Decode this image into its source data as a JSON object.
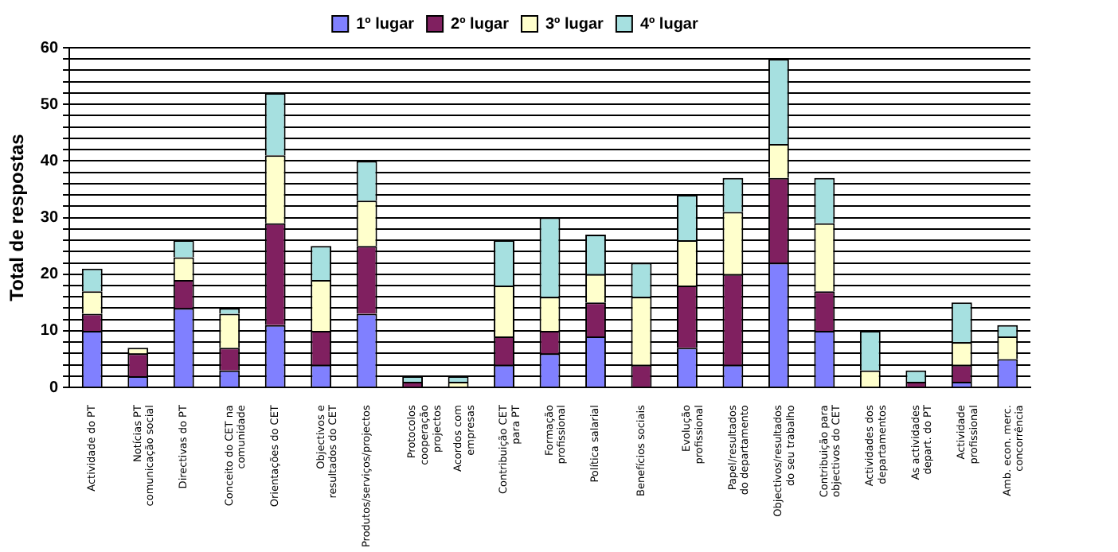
{
  "chart_data": {
    "type": "bar",
    "stacked": true,
    "ylabel": "Total de respostas",
    "categories": [
      "Actividade do PT",
      "Notícias PT comunicação social",
      "Directivas do PT",
      "Conceito do CET na comunidade",
      "Orientações do CET",
      "Objectivos e resultados do CET",
      "Produtos/serviços/projectos",
      "Protocolos cooperação projectos",
      "Acordos com empresas",
      "Contribuição CET para PT",
      "Formação profissional",
      "Política salarial",
      "Benefícios sociais",
      "Evolução profissional",
      "Papel/resultados do departamento",
      "Objectivos/resultados do seu trabalho",
      "Contribuição para objectivos do CET",
      "Actividades dos departamentos",
      "As actividades depart. do PT",
      "Actividade profissional",
      "Amb. econ. merc. concorrência"
    ],
    "series": [
      {
        "name": "1º lugar",
        "color": "#8080ff",
        "values": [
          10,
          2,
          14,
          3,
          11,
          4,
          13,
          0,
          0,
          4,
          6,
          9,
          0,
          7,
          4,
          22,
          10,
          0,
          0,
          1,
          5
        ]
      },
      {
        "name": "2º lugar",
        "color": "#802060",
        "values": [
          3,
          4,
          5,
          4,
          18,
          6,
          12,
          1,
          0,
          5,
          4,
          6,
          4,
          11,
          16,
          15,
          7,
          0,
          1,
          3,
          0
        ]
      },
      {
        "name": "3º lugar",
        "color": "#ffffcc",
        "values": [
          4,
          1,
          4,
          6,
          12,
          9,
          8,
          0,
          1,
          9,
          6,
          5,
          12,
          8,
          11,
          6,
          12,
          3,
          0,
          4,
          4
        ]
      },
      {
        "name": "4º lugar",
        "color": "#a6e0e0",
        "values": [
          4,
          0,
          3,
          1,
          11,
          6,
          7,
          1,
          1,
          8,
          14,
          7,
          6,
          8,
          6,
          15,
          8,
          7,
          2,
          7,
          2
        ]
      }
    ],
    "ylim": [
      0,
      60
    ],
    "yticks": [
      0,
      {
        "value": 2,
        "label": null
      },
      {
        "value": 4,
        "label": null
      },
      {
        "value": 6,
        "label": null
      },
      {
        "value": 8,
        "label": null
      },
      10,
      {
        "value": 12,
        "label": null
      },
      {
        "value": 14,
        "label": null
      },
      {
        "value": 16,
        "label": null
      },
      {
        "value": 18,
        "label": null
      },
      20,
      {
        "value": 22,
        "label": null
      },
      {
        "value": 24,
        "label": null
      },
      {
        "value": 26,
        "label": null
      },
      {
        "value": 28,
        "label": null
      },
      30,
      {
        "value": 32,
        "label": null
      },
      {
        "value": 34,
        "label": null
      },
      {
        "value": 36,
        "label": null
      },
      {
        "value": 38,
        "label": null
      },
      40,
      {
        "value": 42,
        "label": null
      },
      {
        "value": 44,
        "label": null
      },
      {
        "value": 46,
        "label": null
      },
      {
        "value": 48,
        "label": null
      },
      50,
      {
        "value": 52,
        "label": null
      },
      {
        "value": 54,
        "label": null
      },
      {
        "value": 56,
        "label": null
      },
      {
        "value": 58,
        "label": null
      },
      60
    ],
    "grid": "y",
    "legend": "top"
  }
}
